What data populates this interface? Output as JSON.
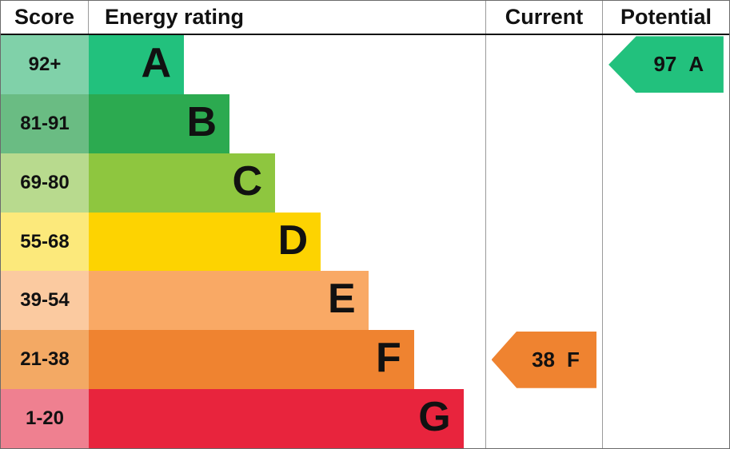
{
  "header": {
    "score": "Score",
    "energy_rating": "Energy rating",
    "current": "Current",
    "potential": "Potential"
  },
  "chart_data": {
    "type": "bar",
    "subtype": "epc-energy-rating",
    "orientation": "horizontal",
    "bands": [
      {
        "score_range": "92+",
        "letter": "A",
        "bar_color": "#22c17d",
        "score_color": "#80d1a9",
        "width_pct": 24
      },
      {
        "score_range": "81-91",
        "letter": "B",
        "bar_color": "#2caa50",
        "score_color": "#6abc83",
        "width_pct": 35.5
      },
      {
        "score_range": "69-80",
        "letter": "C",
        "bar_color": "#8ec63f",
        "score_color": "#b8da8e",
        "width_pct": 47
      },
      {
        "score_range": "55-68",
        "letter": "D",
        "bar_color": "#fdd301",
        "score_color": "#fce97b",
        "width_pct": 58.5
      },
      {
        "score_range": "39-54",
        "letter": "E",
        "bar_color": "#f9a965",
        "score_color": "#fbcaa0",
        "width_pct": 70.5
      },
      {
        "score_range": "21-38",
        "letter": "F",
        "bar_color": "#ef8330",
        "score_color": "#f3a964",
        "width_pct": 82
      },
      {
        "score_range": "1-20",
        "letter": "G",
        "bar_color": "#e8243d",
        "score_color": "#ef8090",
        "width_pct": 94.5
      }
    ],
    "current": {
      "value": "38",
      "letter": "F",
      "band_index": 5,
      "arrow_color": "#ef8330"
    },
    "potential": {
      "value": "97",
      "letter": "A",
      "band_index": 0,
      "arrow_color": "#22c17d"
    }
  }
}
